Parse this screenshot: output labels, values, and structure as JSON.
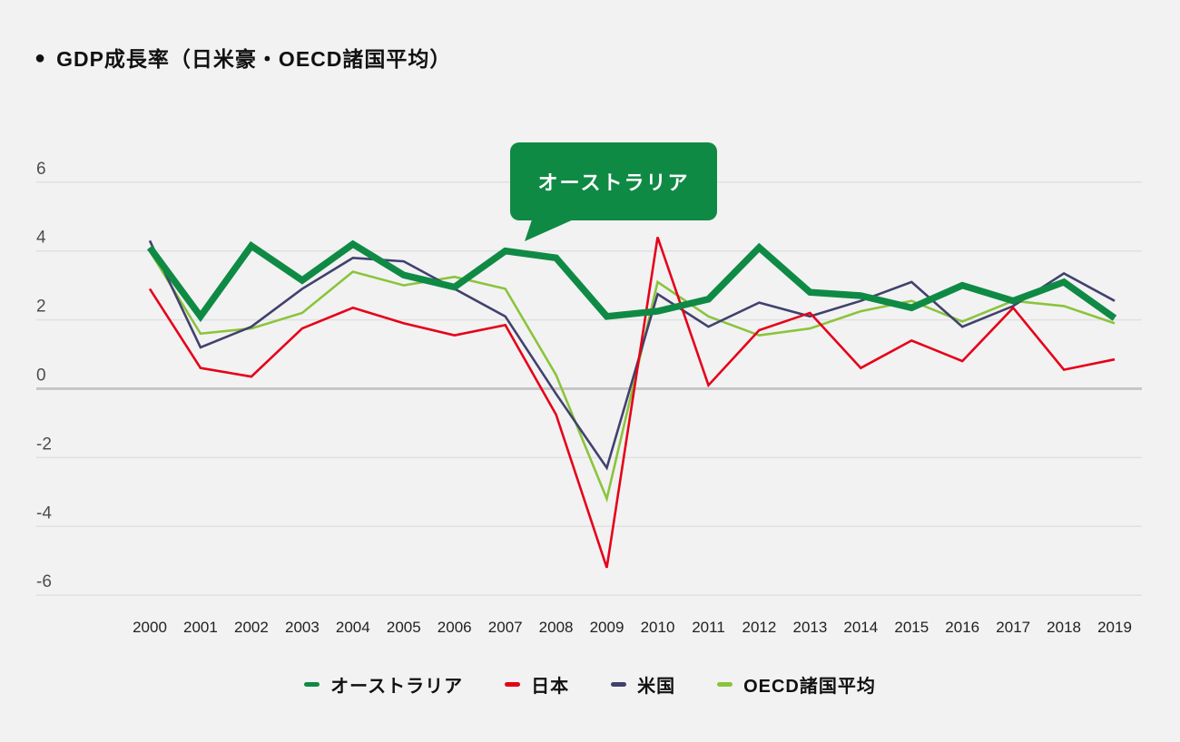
{
  "title": {
    "bullet": "●",
    "text": "GDP成長率（日米豪・OECD諸国平均）"
  },
  "callout": {
    "label": "オーストラリア",
    "bg": "#0f8a45"
  },
  "colors": {
    "background": "#f2f2f2",
    "gridline": "#e0e0e0",
    "zeroline": "#c7c7c7",
    "australia": "#0f8a45",
    "japan": "#e60019",
    "us": "#41416f",
    "oecd": "#8bc43c"
  },
  "chart_data": {
    "type": "line",
    "x": [
      2000,
      2001,
      2002,
      2003,
      2004,
      2005,
      2006,
      2007,
      2008,
      2009,
      2010,
      2011,
      2012,
      2013,
      2014,
      2015,
      2016,
      2017,
      2018,
      2019
    ],
    "series": [
      {
        "name": "オーストラリア",
        "color": "#0f8a45",
        "width": 7.5,
        "values": [
          4.1,
          2.1,
          4.15,
          3.15,
          4.2,
          3.3,
          2.95,
          4.0,
          3.8,
          2.1,
          2.25,
          2.6,
          4.1,
          2.8,
          2.7,
          2.35,
          3.0,
          2.55,
          3.1,
          2.05
        ]
      },
      {
        "name": "日本",
        "color": "#e60019",
        "width": 2.6,
        "values": [
          2.9,
          0.6,
          0.35,
          1.75,
          2.35,
          1.9,
          1.55,
          1.85,
          -0.75,
          -5.2,
          4.4,
          0.1,
          1.7,
          2.2,
          0.6,
          1.4,
          0.8,
          2.35,
          0.55,
          0.85
        ]
      },
      {
        "name": "米国",
        "color": "#41416f",
        "width": 2.6,
        "values": [
          4.3,
          1.2,
          1.8,
          2.9,
          3.8,
          3.7,
          2.9,
          2.1,
          -0.15,
          -2.3,
          2.75,
          1.8,
          2.5,
          2.1,
          2.55,
          3.1,
          1.8,
          2.4,
          3.35,
          2.55
        ]
      },
      {
        "name": "OECD諸国平均",
        "color": "#8bc43c",
        "width": 2.6,
        "values": [
          4.0,
          1.6,
          1.75,
          2.2,
          3.4,
          3.0,
          3.25,
          2.9,
          0.4,
          -3.2,
          3.1,
          2.1,
          1.55,
          1.75,
          2.25,
          2.55,
          1.95,
          2.55,
          2.4,
          1.9
        ]
      }
    ],
    "title": "GDP成長率（日米豪・OECD諸国平均）",
    "xlabel": "",
    "ylabel": "",
    "ylim": [
      -6,
      6
    ],
    "yticks": [
      6,
      4,
      2,
      0,
      -2,
      -4,
      -6
    ],
    "grid": true,
    "legend_position": "bottom",
    "annotation": "オーストラリア"
  }
}
